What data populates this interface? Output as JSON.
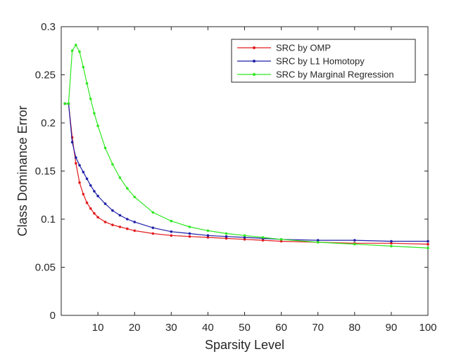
{
  "chart_data": {
    "type": "line",
    "title": "",
    "xlabel": "Sparsity Level",
    "ylabel": "Class Dominance Error",
    "xlim": [
      0,
      100
    ],
    "ylim": [
      0,
      0.3
    ],
    "xticks": [
      10,
      20,
      30,
      40,
      50,
      60,
      70,
      80,
      90,
      100
    ],
    "yticks": [
      0,
      0.05,
      0.1,
      0.15,
      0.2,
      0.25,
      0.3
    ],
    "xtick_labels": [
      "10",
      "20",
      "30",
      "40",
      "50",
      "60",
      "70",
      "80",
      "90",
      "100"
    ],
    "ytick_labels": [
      "0",
      "0.05",
      "0.1",
      "0.15",
      "0.2",
      "0.25",
      "0.3"
    ],
    "grid": false,
    "legend_position": "top-right",
    "series": [
      {
        "name": "SRC by OMP",
        "color": "#e31a1c",
        "points": [
          [
            1,
            0.22
          ],
          [
            2,
            0.22
          ],
          [
            3,
            0.185
          ],
          [
            4,
            0.158
          ],
          [
            5,
            0.138
          ],
          [
            6,
            0.126
          ],
          [
            7,
            0.117
          ],
          [
            8,
            0.111
          ],
          [
            9,
            0.106
          ],
          [
            10,
            0.102
          ],
          [
            12,
            0.097
          ],
          [
            14,
            0.094
          ],
          [
            16,
            0.092
          ],
          [
            18,
            0.09
          ],
          [
            20,
            0.088
          ],
          [
            25,
            0.085
          ],
          [
            30,
            0.083
          ],
          [
            35,
            0.082
          ],
          [
            40,
            0.081
          ],
          [
            45,
            0.08
          ],
          [
            50,
            0.079
          ],
          [
            55,
            0.078
          ],
          [
            60,
            0.077
          ],
          [
            70,
            0.076
          ],
          [
            80,
            0.075
          ],
          [
            90,
            0.075
          ],
          [
            100,
            0.074
          ]
        ]
      },
      {
        "name": "SRC by L1 Homotopy",
        "color": "#1f1fa8",
        "points": [
          [
            1,
            0.22
          ],
          [
            2,
            0.22
          ],
          [
            3,
            0.18
          ],
          [
            4,
            0.164
          ],
          [
            5,
            0.156
          ],
          [
            6,
            0.149
          ],
          [
            7,
            0.142
          ],
          [
            8,
            0.135
          ],
          [
            9,
            0.129
          ],
          [
            10,
            0.124
          ],
          [
            12,
            0.116
          ],
          [
            14,
            0.109
          ],
          [
            16,
            0.104
          ],
          [
            18,
            0.1
          ],
          [
            20,
            0.097
          ],
          [
            25,
            0.091
          ],
          [
            30,
            0.087
          ],
          [
            35,
            0.085
          ],
          [
            40,
            0.083
          ],
          [
            45,
            0.082
          ],
          [
            50,
            0.081
          ],
          [
            55,
            0.08
          ],
          [
            60,
            0.079
          ],
          [
            70,
            0.078
          ],
          [
            80,
            0.078
          ],
          [
            90,
            0.077
          ],
          [
            100,
            0.077
          ]
        ]
      },
      {
        "name": "SRC by Marginal Regression",
        "color": "#2ee81f",
        "points": [
          [
            1,
            0.22
          ],
          [
            2,
            0.22
          ],
          [
            3,
            0.275
          ],
          [
            4,
            0.281
          ],
          [
            5,
            0.274
          ],
          [
            6,
            0.258
          ],
          [
            7,
            0.241
          ],
          [
            8,
            0.225
          ],
          [
            9,
            0.21
          ],
          [
            10,
            0.197
          ],
          [
            12,
            0.174
          ],
          [
            14,
            0.157
          ],
          [
            16,
            0.143
          ],
          [
            18,
            0.132
          ],
          [
            20,
            0.123
          ],
          [
            25,
            0.107
          ],
          [
            30,
            0.098
          ],
          [
            35,
            0.092
          ],
          [
            40,
            0.088
          ],
          [
            45,
            0.085
          ],
          [
            50,
            0.083
          ],
          [
            55,
            0.081
          ],
          [
            60,
            0.079
          ],
          [
            70,
            0.076
          ],
          [
            80,
            0.074
          ],
          [
            90,
            0.072
          ],
          [
            100,
            0.07
          ]
        ]
      }
    ]
  }
}
